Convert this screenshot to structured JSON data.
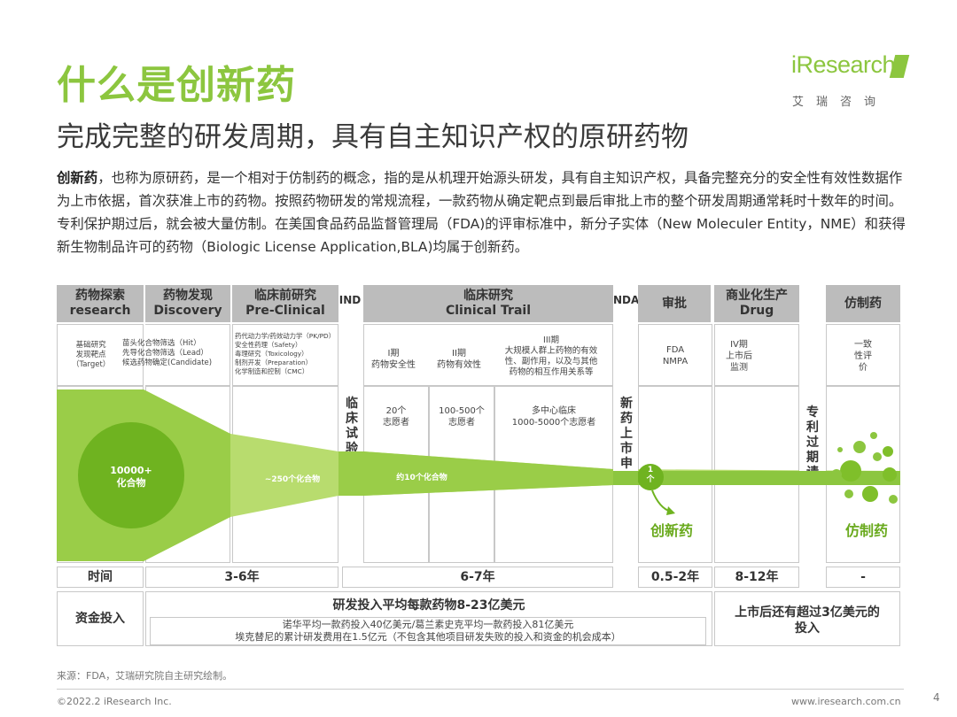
{
  "header": {
    "title": "什么是创新药",
    "subtitle": "完成完整的研发周期，具有自主知识产权的原研药物",
    "logo_text": "iResearch",
    "logo_sub": "艾瑞咨询"
  },
  "intro": {
    "lead": "创新药",
    "body": "，也称为原研药，是一个相对于仿制药的概念，指的是从机理开始源头研发，具有自主知识产权，具备完整充分的安全性有效性数据作为上市依据，首次获准上市的药物。按照药物研发的常规流程，一款药物从确定靶点到最后审批上市的整个研发周期通常耗时十数年的时间。专利保护期过后，就会被大量仿制。在美国食品药品监督管理局（FDA)的评审标准中，新分子实体（New Moleculer Entity，NME）和获得新生物制品许可的药物（Biologic License Application,BLA)均属于创新药。"
  },
  "phases": {
    "explore": {
      "cn": "药物探索",
      "en": "research"
    },
    "discovery": {
      "cn": "药物发现",
      "en": "Discovery"
    },
    "preclinical": {
      "cn": "临床前研究",
      "en": "Pre-Clinical"
    },
    "ind": "IND",
    "clinical": {
      "cn": "临床研究",
      "en": "Clinical Trail"
    },
    "nda": "NDA",
    "approval": "审批",
    "commercial": {
      "cn": "商业化生产",
      "en": "Drug"
    },
    "generic": "仿制药"
  },
  "details": {
    "explore": [
      "基础研究",
      "发现靶点",
      "（Target）"
    ],
    "discovery": [
      "苗头化合物筛选（Hit）",
      "先导化合物筛选（Lead）",
      "候选药物确定(Candidate)"
    ],
    "preclinical": [
      "药代动力学/药效动力学（PK/PD）",
      "安全性药理（Safety）",
      "毒理研究（Toxicology）",
      "制剂开发（Preparation）",
      "化学制造和控制（CMC）"
    ],
    "phase1": [
      "I期",
      "药物安全性"
    ],
    "phase2": [
      "II期",
      "药物有效性"
    ],
    "phase3": [
      "III期",
      "大规模人群上药物的有效",
      "性、副作用，以及与其他",
      "药物的相互作用关系等"
    ],
    "approval": [
      "FDA",
      "NMPA"
    ],
    "commercial": [
      "IV期",
      "上市后",
      "监测"
    ],
    "generic": [
      "一致",
      "性评",
      "价"
    ]
  },
  "volunteers": {
    "p1": [
      "20个",
      "志愿者"
    ],
    "p2": [
      "100-500个",
      "志愿者"
    ],
    "p3": [
      "多中心临床",
      "1000-5000个志愿者"
    ]
  },
  "vertical_labels": {
    "ind_apply": "临床试验申请",
    "nda_apply": "新药上市申请",
    "patent_expire": "专利过期请"
  },
  "funnel": {
    "start": [
      "10000+",
      "化合物"
    ],
    "mid": "~250个化合物",
    "clinical": "约10个化合物",
    "final": [
      "1",
      "个"
    ],
    "innovative_label": "创新药",
    "generic_label": "仿制药"
  },
  "time_row": {
    "label": "时间",
    "discovery": "3-6年",
    "clinical": "6-7年",
    "approval": "0.5-2年",
    "commercial": "8-12年",
    "generic": "-"
  },
  "invest_row": {
    "label": "资金投入",
    "headline": "研发投入平均每款药物8-23亿美元",
    "line1": "诺华平均一款药投入40亿美元/葛兰素史克平均一款药投入81亿美元",
    "line2": "埃克替尼的累计研发费用在1.5亿元（不包含其他项目研发失败的投入和资金的机会成本）",
    "post_market": [
      "上市后还有超过3亿美元的",
      "投入"
    ]
  },
  "footer": {
    "source": "来源：FDA，艾瑞研究院自主研究绘制。",
    "copyright": "©2022.2 iResearch Inc.",
    "website": "www.iresearch.com.cn",
    "page": "4"
  },
  "colors": {
    "brand": "#8cc63f",
    "funnel_dark": "#7fbf2a",
    "funnel_light": "#b8dc6e",
    "header_gray": "#bcbcbc"
  }
}
